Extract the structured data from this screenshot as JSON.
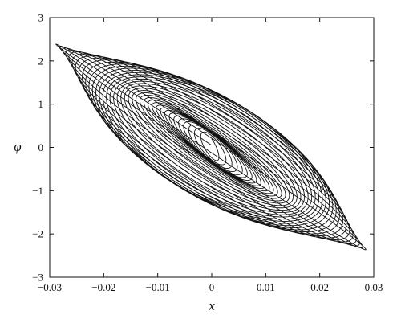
{
  "chart_data": {
    "type": "line",
    "title": "",
    "xlabel": "x",
    "ylabel": "φ",
    "xlim": [
      -0.03,
      0.03
    ],
    "ylim": [
      -3,
      3
    ],
    "x_ticks": [
      -0.03,
      -0.02,
      -0.01,
      0,
      0.01,
      0.02,
      0.03
    ],
    "x_tick_labels": [
      "−0.03",
      "−0.02",
      "−0.01",
      "0",
      "0.01",
      "0.02",
      "0.03"
    ],
    "y_ticks": [
      -3,
      -2,
      -1,
      0,
      1,
      2,
      3
    ],
    "y_tick_labels": [
      "−3",
      "−2",
      "−1",
      "0",
      "1",
      "2",
      "3"
    ],
    "grid": false,
    "legend": "none",
    "line_color": "#111111",
    "series": [
      {
        "description": "phase-plane trajectory spiraling outward from origin",
        "parametric": {
          "x_amplitude_start": 0.0008,
          "x_amplitude_end": 0.029,
          "phi_amplitude_start": 0.25,
          "phi_amplitude_end": 2.4,
          "turns": 38,
          "phase_lag_rad_start": 0.9,
          "phase_lag_rad_end": 0.25
        }
      }
    ]
  }
}
